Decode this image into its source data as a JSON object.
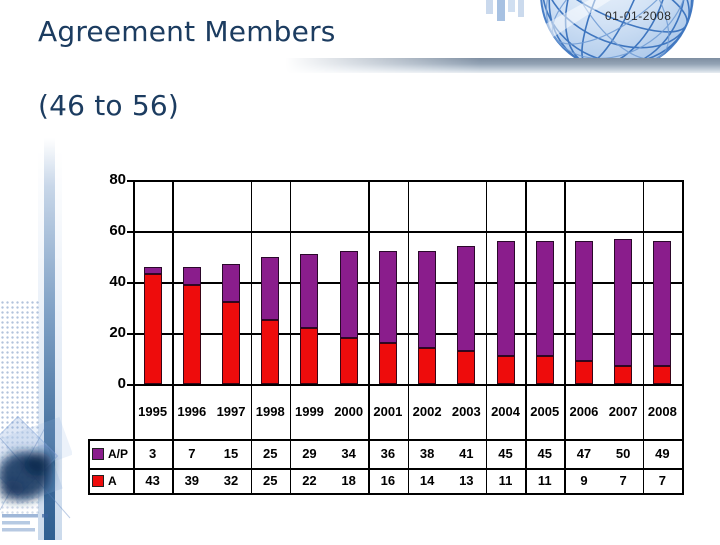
{
  "slide": {
    "title_line1": "Agreement Members",
    "title_line2": "(46 to 56)",
    "date": "01-01-2008",
    "title_color": "#1c3c60"
  },
  "chart_data": {
    "type": "bar",
    "stacked": true,
    "title": "",
    "xlabel": "",
    "ylabel": "",
    "categories": [
      "1995",
      "1996",
      "1997",
      "1998",
      "1999",
      "2000",
      "2001",
      "2002",
      "2003",
      "2004",
      "2005",
      "2006",
      "2007",
      "2008"
    ],
    "series": [
      {
        "name": "A/P",
        "color": "#8a1d8c",
        "values": [
          3,
          7,
          15,
          25,
          29,
          34,
          36,
          38,
          41,
          45,
          45,
          47,
          50,
          49
        ]
      },
      {
        "name": "A",
        "color": "#ee0c0c",
        "values": [
          43,
          39,
          32,
          25,
          22,
          18,
          16,
          14,
          13,
          11,
          11,
          9,
          7,
          7
        ]
      }
    ],
    "stack_bottom_series": "A",
    "ylim": [
      0,
      80
    ],
    "yticks": [
      0,
      20,
      40,
      60,
      80
    ],
    "grid": true,
    "legend_position": "data-table-left",
    "data_table_shown": true,
    "column_separators_after_index": [
      0,
      2,
      3,
      5,
      6,
      8,
      9,
      10,
      12
    ]
  }
}
